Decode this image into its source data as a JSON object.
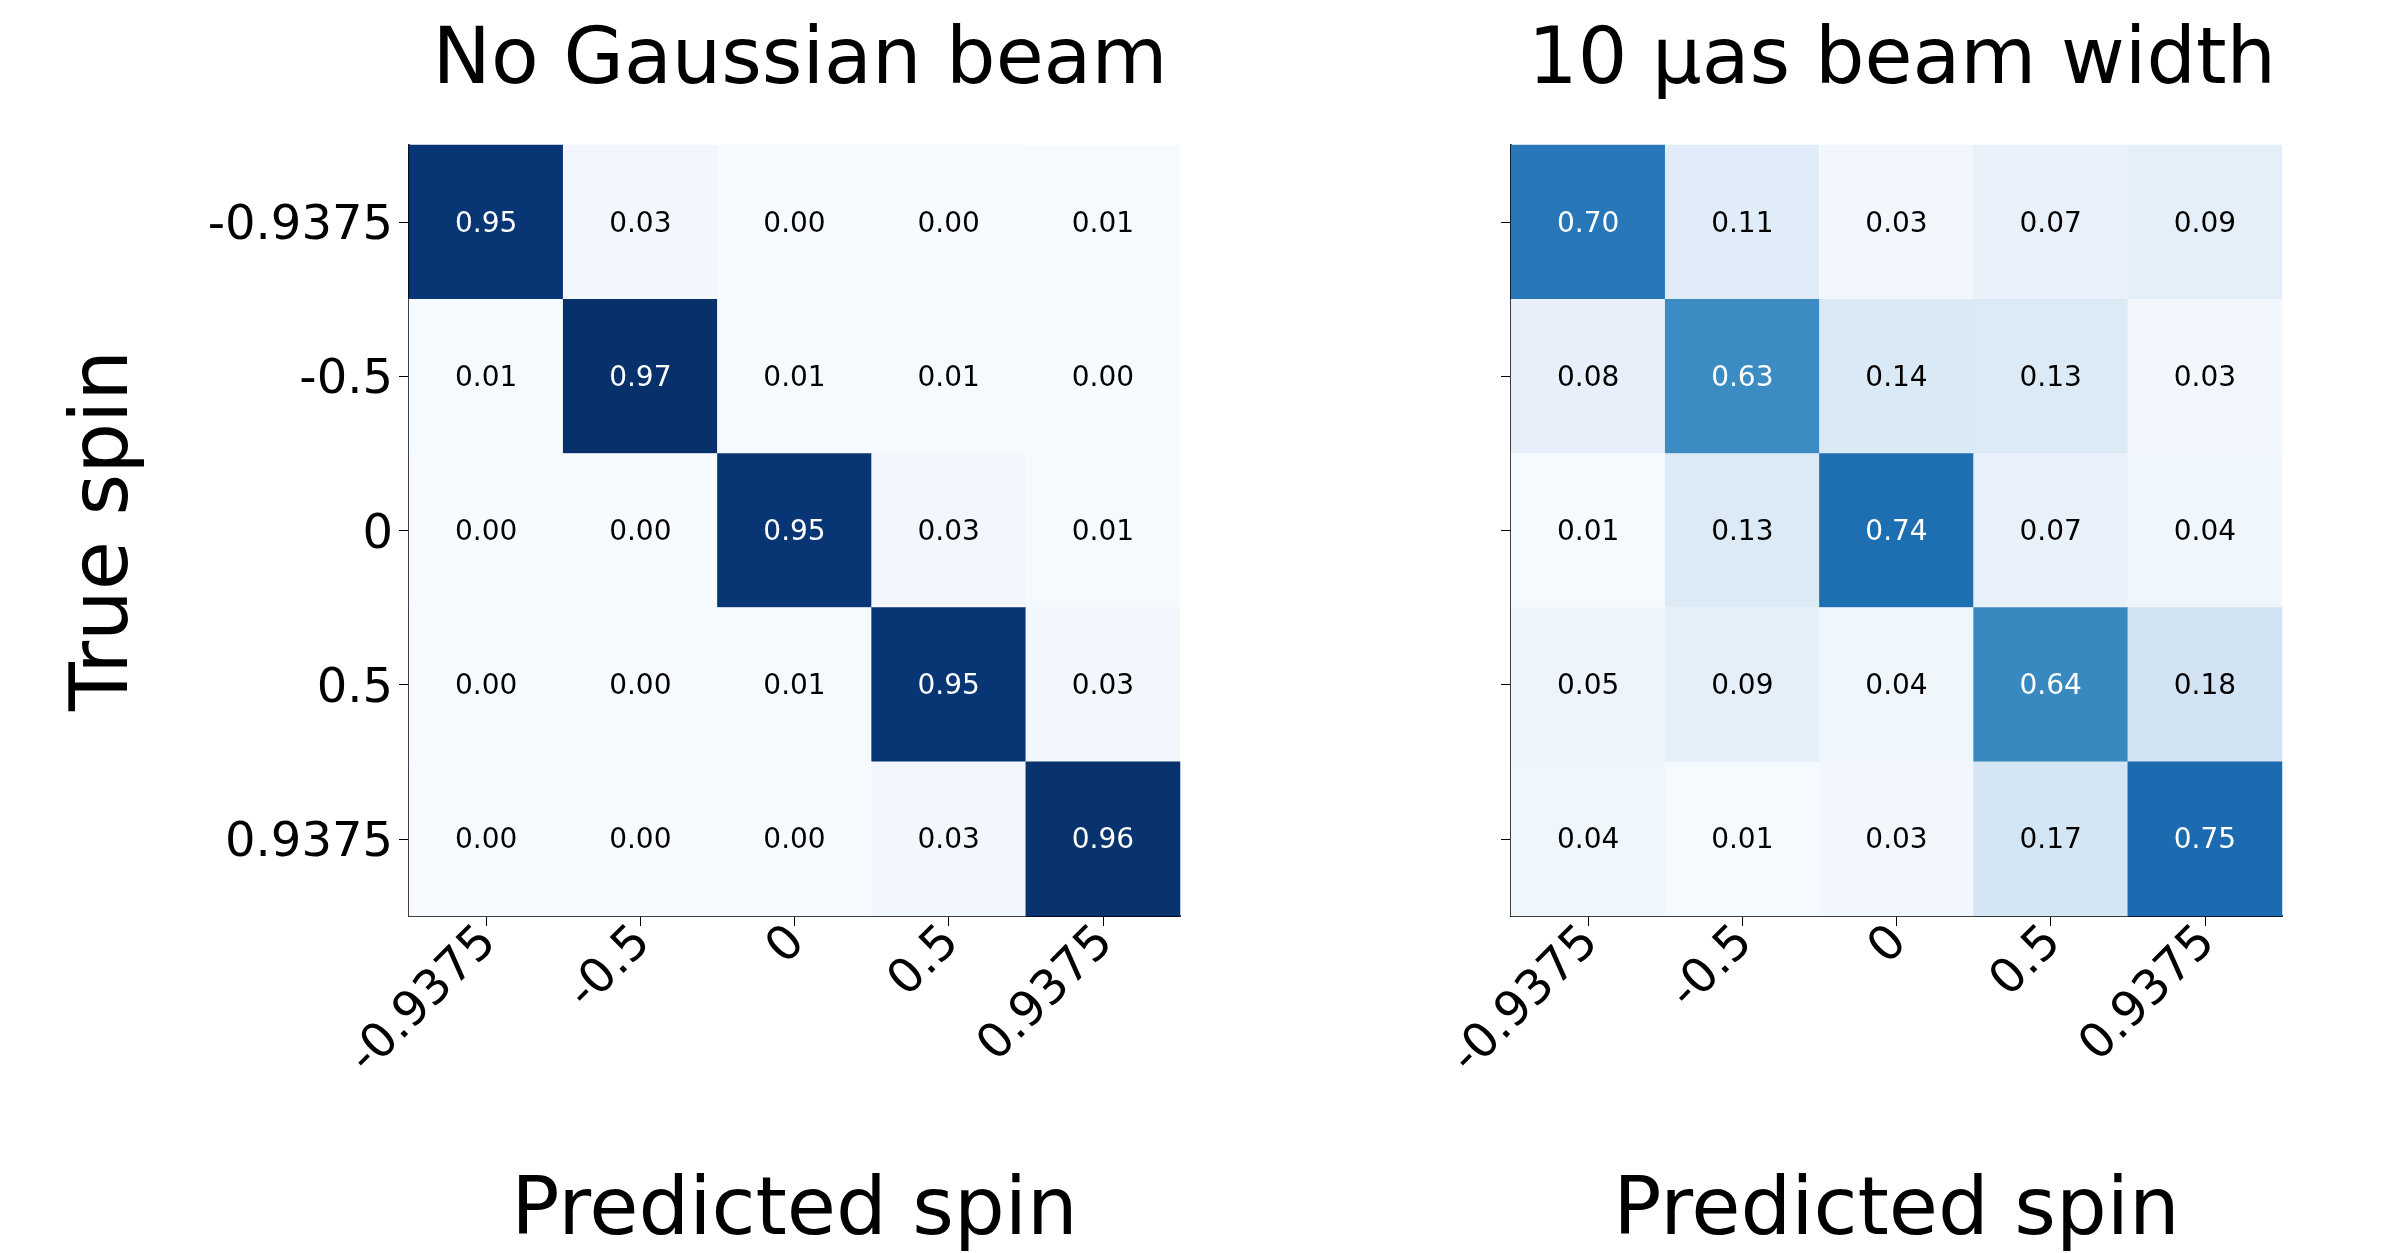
{
  "chart_data": [
    {
      "type": "heatmap",
      "title": "No Gaussian beam",
      "xlabel": "Predicted spin",
      "ylabel": "True spin",
      "categories": [
        "-0.9375",
        "-0.5",
        "0",
        "0.5",
        "0.9375"
      ],
      "y_categories": [
        "-0.9375",
        "-0.5",
        "0",
        "0.5",
        "0.9375"
      ],
      "cells": [
        [
          0.95,
          0.03,
          0.0,
          0.0,
          0.01
        ],
        [
          0.01,
          0.97,
          0.01,
          0.01,
          0.0
        ],
        [
          0.0,
          0.0,
          0.95,
          0.03,
          0.01
        ],
        [
          0.0,
          0.0,
          0.01,
          0.95,
          0.03
        ],
        [
          0.0,
          0.0,
          0.0,
          0.03,
          0.96
        ]
      ],
      "cell_labels": [
        [
          "0.95",
          "0.03",
          "0.00",
          "0.00",
          "0.01"
        ],
        [
          "0.01",
          "0.97",
          "0.01",
          "0.01",
          "0.00"
        ],
        [
          "0.00",
          "0.00",
          "0.95",
          "0.03",
          "0.01"
        ],
        [
          "0.00",
          "0.00",
          "0.01",
          "0.95",
          "0.03"
        ],
        [
          "0.00",
          "0.00",
          "0.00",
          "0.03",
          "0.96"
        ]
      ]
    },
    {
      "type": "heatmap",
      "title": "10 μas beam width",
      "xlabel": "Predicted spin",
      "categories": [
        "-0.9375",
        "-0.5",
        "0",
        "0.5",
        "0.9375"
      ],
      "y_categories": [
        "-0.9375",
        "-0.5",
        "0",
        "0.5",
        "0.9375"
      ],
      "tick_labels": "x",
      "cells": [
        [
          0.7,
          0.11,
          0.03,
          0.07,
          0.09
        ],
        [
          0.08,
          0.63,
          0.14,
          0.13,
          0.03
        ],
        [
          0.01,
          0.13,
          0.74,
          0.07,
          0.04
        ],
        [
          0.05,
          0.09,
          0.04,
          0.64,
          0.18
        ],
        [
          0.04,
          0.01,
          0.03,
          0.17,
          0.75
        ]
      ],
      "cell_labels": [
        [
          "0.70",
          "0.11",
          "0.03",
          "0.07",
          "0.09"
        ],
        [
          "0.08",
          "0.63",
          "0.14",
          "0.13",
          "0.03"
        ],
        [
          "0.01",
          "0.13",
          "0.74",
          "0.07",
          "0.04"
        ],
        [
          "0.05",
          "0.09",
          "0.04",
          "0.64",
          "0.18"
        ],
        [
          "0.04",
          "0.01",
          "0.03",
          "0.17",
          "0.75"
        ]
      ]
    }
  ]
}
